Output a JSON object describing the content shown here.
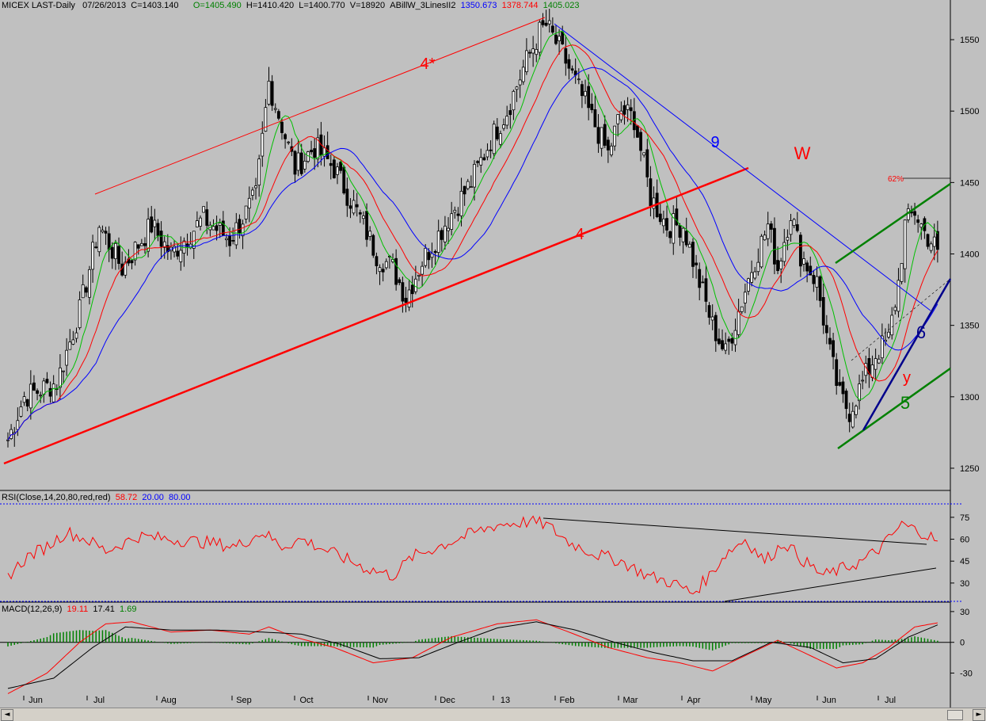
{
  "header": {
    "symbol": "MICEX LAST-Daily",
    "date": "07/26/2013",
    "close": "C=1403.140",
    "open": "O=1405.490",
    "high": "H=1410.420",
    "low": "L=1400.770",
    "volume": "V=18920",
    "indicator": "ABillW_3LinesII2",
    "ind_blue": "1350.673",
    "ind_red": "1378.744",
    "ind_green": "1405.023"
  },
  "rsi_header": {
    "label": "RSI(Close,14,20,80,red,red)",
    "value": "58.72",
    "lower": "20.00",
    "upper": "80.00"
  },
  "macd_header": {
    "label": "MACD(12,26,9)",
    "macd": "19.11",
    "signal": "17.41",
    "hist": "1.69"
  },
  "colors": {
    "background": "#c0c0c0",
    "candle": "#000000",
    "ma_blue": "#0000ff",
    "ma_red": "#ff0000",
    "ma_green": "#00c000",
    "annot_red": "#ff0000",
    "annot_blue": "#0000ff",
    "annot_green": "#008000",
    "annot_navy": "#00008b",
    "hist_green": "#008000"
  },
  "annotations": {
    "wave_4_star": "4*",
    "wave_4": "4",
    "wave_9": "9",
    "wave_w": "W",
    "wave_6": "6",
    "wave_y": "y",
    "wave_5": "5",
    "fib_62": "62%"
  },
  "scrollbar": {
    "left_arrow": "◄",
    "right_arrow": "►"
  },
  "chart_data": {
    "type": "candlestick",
    "x_ticks": [
      "Jun",
      "Jul",
      "Aug",
      "Sep",
      "Oct",
      "Nov",
      "Dec",
      "13",
      "Feb",
      "Mar",
      "Apr",
      "May",
      "Jun",
      "Jul"
    ],
    "price_panel": {
      "y_ticks": [
        1250,
        1300,
        1350,
        1400,
        1450,
        1500,
        1550
      ],
      "ylim": [
        1235,
        1570
      ],
      "close_path": [
        [
          0,
          1270
        ],
        [
          5,
          1300
        ],
        [
          15,
          1310
        ],
        [
          22,
          1360
        ],
        [
          28,
          1420
        ],
        [
          35,
          1390
        ],
        [
          44,
          1420
        ],
        [
          50,
          1400
        ],
        [
          60,
          1425
        ],
        [
          68,
          1410
        ],
        [
          76,
          1440
        ],
        [
          80,
          1520
        ],
        [
          84,
          1490
        ],
        [
          88,
          1460
        ],
        [
          94,
          1475
        ],
        [
          100,
          1460
        ],
        [
          108,
          1425
        ],
        [
          113,
          1400
        ],
        [
          118,
          1390
        ],
        [
          122,
          1370
        ],
        [
          127,
          1395
        ],
        [
          135,
          1425
        ],
        [
          142,
          1450
        ],
        [
          148,
          1480
        ],
        [
          153,
          1500
        ],
        [
          158,
          1530
        ],
        [
          163,
          1555
        ],
        [
          165,
          1560
        ],
        [
          170,
          1540
        ],
        [
          175,
          1515
        ],
        [
          180,
          1490
        ],
        [
          184,
          1470
        ],
        [
          188,
          1500
        ],
        [
          192,
          1495
        ],
        [
          197,
          1440
        ],
        [
          202,
          1420
        ],
        [
          207,
          1420
        ],
        [
          212,
          1380
        ],
        [
          216,
          1350
        ],
        [
          220,
          1330
        ],
        [
          224,
          1360
        ],
        [
          228,
          1390
        ],
        [
          233,
          1420
        ],
        [
          236,
          1390
        ],
        [
          240,
          1430
        ],
        [
          243,
          1400
        ],
        [
          248,
          1380
        ],
        [
          252,
          1330
        ],
        [
          255,
          1300
        ],
        [
          258,
          1290
        ],
        [
          262,
          1310
        ],
        [
          266,
          1330
        ],
        [
          270,
          1340
        ],
        [
          273,
          1380
        ],
        [
          275,
          1420
        ],
        [
          278,
          1430
        ],
        [
          281,
          1415
        ],
        [
          285,
          1403
        ]
      ],
      "moving_averages": [
        {
          "name": "1350.673",
          "color": "blue",
          "last": 1350.673
        },
        {
          "name": "1378.744",
          "color": "red",
          "last": 1378.744
        },
        {
          "name": "1405.023",
          "color": "green",
          "last": 1405.023
        }
      ],
      "last_close": 1403.14
    },
    "rsi_panel": {
      "y_ticks": [
        30,
        45,
        60,
        75
      ],
      "ylim": [
        18,
        82
      ],
      "upper_level": 80,
      "lower_level": 20,
      "last": 58.72,
      "path": [
        [
          0,
          35
        ],
        [
          6,
          48
        ],
        [
          12,
          55
        ],
        [
          18,
          65
        ],
        [
          24,
          60
        ],
        [
          30,
          52
        ],
        [
          40,
          62
        ],
        [
          50,
          60
        ],
        [
          60,
          58
        ],
        [
          70,
          55
        ],
        [
          78,
          65
        ],
        [
          84,
          55
        ],
        [
          90,
          60
        ],
        [
          100,
          50
        ],
        [
          110,
          40
        ],
        [
          118,
          35
        ],
        [
          124,
          48
        ],
        [
          132,
          55
        ],
        [
          140,
          62
        ],
        [
          150,
          70
        ],
        [
          160,
          72
        ],
        [
          165,
          70
        ],
        [
          172,
          58
        ],
        [
          180,
          50
        ],
        [
          188,
          45
        ],
        [
          196,
          35
        ],
        [
          204,
          30
        ],
        [
          210,
          23
        ],
        [
          215,
          35
        ],
        [
          220,
          50
        ],
        [
          226,
          60
        ],
        [
          232,
          45
        ],
        [
          238,
          58
        ],
        [
          244,
          45
        ],
        [
          250,
          35
        ],
        [
          256,
          40
        ],
        [
          262,
          45
        ],
        [
          268,
          55
        ],
        [
          274,
          70
        ],
        [
          280,
          65
        ],
        [
          285,
          59
        ]
      ]
    },
    "macd_panel": {
      "y_ticks": [
        -30,
        0,
        30
      ],
      "ylim": [
        -52,
        33
      ],
      "macd": 19.11,
      "signal": 17.41,
      "histogram": 1.69,
      "macd_path": [
        [
          0,
          -50
        ],
        [
          12,
          -30
        ],
        [
          22,
          0
        ],
        [
          30,
          18
        ],
        [
          38,
          20
        ],
        [
          50,
          10
        ],
        [
          62,
          12
        ],
        [
          74,
          8
        ],
        [
          80,
          15
        ],
        [
          88,
          5
        ],
        [
          100,
          -5
        ],
        [
          112,
          -20
        ],
        [
          124,
          -15
        ],
        [
          136,
          5
        ],
        [
          150,
          18
        ],
        [
          162,
          22
        ],
        [
          172,
          10
        ],
        [
          184,
          -5
        ],
        [
          196,
          -15
        ],
        [
          206,
          -20
        ],
        [
          216,
          -28
        ],
        [
          228,
          -10
        ],
        [
          236,
          2
        ],
        [
          244,
          -10
        ],
        [
          254,
          -25
        ],
        [
          262,
          -20
        ],
        [
          270,
          -5
        ],
        [
          278,
          15
        ],
        [
          285,
          19
        ]
      ],
      "signal_path": [
        [
          0,
          -45
        ],
        [
          14,
          -35
        ],
        [
          26,
          -5
        ],
        [
          36,
          15
        ],
        [
          50,
          12
        ],
        [
          64,
          12
        ],
        [
          78,
          10
        ],
        [
          90,
          8
        ],
        [
          102,
          -2
        ],
        [
          114,
          -16
        ],
        [
          126,
          -15
        ],
        [
          138,
          0
        ],
        [
          150,
          14
        ],
        [
          162,
          20
        ],
        [
          174,
          12
        ],
        [
          186,
          0
        ],
        [
          198,
          -10
        ],
        [
          210,
          -18
        ],
        [
          222,
          -18
        ],
        [
          234,
          0
        ],
        [
          246,
          -5
        ],
        [
          256,
          -20
        ],
        [
          266,
          -16
        ],
        [
          276,
          5
        ],
        [
          285,
          17
        ]
      ]
    }
  }
}
